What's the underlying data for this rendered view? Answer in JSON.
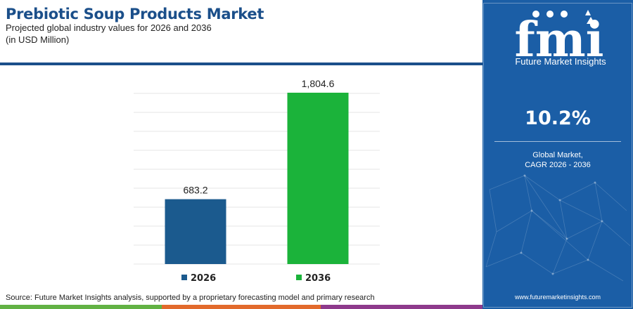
{
  "header": {
    "title": "Prebiotic Soup Products Market",
    "subtitle_line1": "Projected global industry values for 2026 and 2036",
    "subtitle_line2": "(in USD Million)"
  },
  "chart_data": {
    "type": "bar",
    "categories": [
      "2026",
      "2036"
    ],
    "values": [
      683.2,
      1804.6
    ],
    "value_labels": [
      "683.2",
      "1,804.6"
    ],
    "colors": [
      "#1b5a8e",
      "#1bb33a"
    ],
    "legend": [
      "2026",
      "2036"
    ],
    "legend_position": "bottom",
    "ylim": [
      0,
      1804.6
    ],
    "grid": true
  },
  "footer": {
    "source": "Source: Future Market Insights analysis, supported by a proprietary forecasting model and primary research"
  },
  "sidebar": {
    "logo_letters": "fmi",
    "logo_name": "Future Market Insights",
    "cagr_value": "10.2%",
    "cagr_line1": "Global Market,",
    "cagr_line2": "CAGR 2026 - 2036",
    "website": "www.futuremarketinsights.com"
  }
}
